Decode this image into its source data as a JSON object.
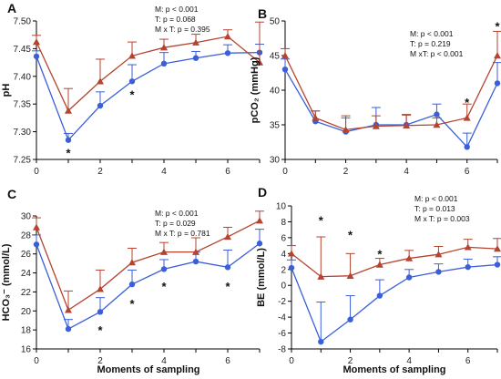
{
  "chart_data": [
    {
      "type": "line",
      "panel_label": "A",
      "ylabel": "pH",
      "xlabel": "",
      "xlim": [
        0,
        7
      ],
      "xticks": [
        0,
        2,
        4,
        6
      ],
      "ylim": [
        7.25,
        7.5
      ],
      "yticks": [
        7.25,
        7.3,
        7.35,
        7.4,
        7.45,
        7.5
      ],
      "ytick_labels": [
        "7.25",
        "7.30",
        "7.35",
        "7.40",
        "7.45",
        "7.50"
      ],
      "grid": false,
      "stats": [
        "M: p < 0.001",
        "T: p = 0.068",
        "M x T: p = 0.395"
      ],
      "series": [
        {
          "color": "#3a5fd9",
          "marker": "circle",
          "x": [
            0,
            1,
            2,
            3,
            4,
            5,
            6,
            7
          ],
          "values": [
            7.436,
            7.285,
            7.347,
            7.391,
            7.423,
            7.433,
            7.442,
            7.443
          ],
          "err": [
            0.01,
            0.012,
            0.025,
            0.03,
            0.02,
            0.012,
            0.015,
            0.015
          ]
        },
        {
          "color": "#b5432f",
          "marker": "triangle",
          "x": [
            0,
            1,
            2,
            3,
            4,
            5,
            6,
            7
          ],
          "values": [
            7.462,
            7.338,
            7.391,
            7.437,
            7.452,
            7.461,
            7.472,
            7.425
          ],
          "err": [
            0.012,
            0.04,
            0.04,
            0.025,
            0.015,
            0.015,
            0.012,
            0.073
          ]
        }
      ],
      "annotations": [
        {
          "x": 1,
          "y": 7.262,
          "text": "*"
        },
        {
          "x": 3,
          "y": 7.368,
          "text": "*"
        }
      ]
    },
    {
      "type": "line",
      "panel_label": "B",
      "ylabel": "pCO₂ (mmHg)",
      "xlabel": "",
      "xlim": [
        0,
        7
      ],
      "xticks": [
        0,
        2,
        4,
        6
      ],
      "ylim": [
        30,
        50
      ],
      "yticks": [
        30,
        35,
        40,
        45,
        50
      ],
      "ytick_labels": [
        "30",
        "35",
        "40",
        "45",
        "50"
      ],
      "grid": false,
      "stats": [
        "M: p < 0.001",
        "T: p = 0.219",
        "M xT: p < 0.001"
      ],
      "series": [
        {
          "color": "#3a5fd9",
          "marker": "circle",
          "x": [
            0,
            1,
            2,
            3,
            4,
            5,
            6,
            7
          ],
          "values": [
            43.0,
            35.5,
            34.0,
            35.0,
            35.0,
            36.5,
            31.8,
            41.0
          ],
          "err": [
            1.5,
            1.5,
            2.0,
            2.5,
            1.5,
            1.5,
            2.0,
            3.0
          ]
        },
        {
          "color": "#b5432f",
          "marker": "triangle",
          "x": [
            0,
            1,
            2,
            3,
            4,
            5,
            6,
            7
          ],
          "values": [
            45.0,
            36.0,
            34.3,
            34.8,
            34.9,
            35.0,
            36.0,
            45.0
          ],
          "err": [
            1.0,
            1.0,
            2.0,
            1.5,
            1.5,
            1.0,
            2.0,
            3.5
          ]
        }
      ],
      "annotations": [
        {
          "x": 6,
          "y": 38.3,
          "text": "*"
        },
        {
          "x": 7,
          "y": 49.3,
          "text": "*"
        }
      ]
    },
    {
      "type": "line",
      "panel_label": "C",
      "ylabel": "HCO₃⁻ (mmol/L)",
      "xlabel": "Moments  of sampling",
      "xlim": [
        0,
        7
      ],
      "xticks": [
        0,
        2,
        4,
        6
      ],
      "ylim": [
        16,
        30
      ],
      "yticks": [
        16,
        18,
        20,
        22,
        24,
        26,
        28,
        30
      ],
      "ytick_labels": [
        "16",
        "18",
        "20",
        "22",
        "24",
        "26",
        "28",
        "30"
      ],
      "grid": false,
      "stats": [
        "M: p < 0.001",
        "T: p = 0.029",
        "M x T: p = 0.781"
      ],
      "series": [
        {
          "color": "#3a5fd9",
          "marker": "circle",
          "x": [
            0,
            1,
            2,
            3,
            4,
            5,
            6,
            7
          ],
          "values": [
            27.0,
            18.1,
            19.9,
            22.8,
            24.4,
            25.2,
            24.6,
            27.1
          ],
          "err": [
            1.0,
            1.0,
            1.5,
            1.5,
            1.0,
            1.0,
            1.8,
            1.5
          ]
        },
        {
          "color": "#b5432f",
          "marker": "triangle",
          "x": [
            0,
            1,
            2,
            3,
            4,
            5,
            6,
            7
          ],
          "values": [
            28.8,
            20.1,
            22.3,
            25.1,
            26.2,
            26.2,
            27.8,
            29.5
          ],
          "err": [
            1.0,
            2.0,
            2.0,
            1.5,
            1.0,
            1.5,
            1.0,
            1.0
          ]
        }
      ],
      "annotations": [
        {
          "x": 2,
          "y": 18.0,
          "text": "*"
        },
        {
          "x": 3,
          "y": 20.8,
          "text": "*"
        },
        {
          "x": 4,
          "y": 22.6,
          "text": "*"
        },
        {
          "x": 6,
          "y": 22.6,
          "text": "*"
        }
      ]
    },
    {
      "type": "line",
      "panel_label": "D",
      "ylabel": "BE (mmol/L)",
      "xlabel": "Moments  of sampling",
      "xlim": [
        0,
        7
      ],
      "xticks": [
        0,
        2,
        4,
        6
      ],
      "ylim": [
        -8,
        10
      ],
      "yticks": [
        -8,
        -6,
        -4,
        -2,
        0,
        2,
        4,
        6,
        8,
        10
      ],
      "ytick_labels": [
        "-8",
        "-6",
        "-4",
        "-2",
        "0",
        "2",
        "4",
        "6",
        "8",
        "10"
      ],
      "grid": false,
      "stats": [
        "M: p < 0.001",
        "T: p = 0.013",
        "M x T: p = 0.003"
      ],
      "series": [
        {
          "color": "#3a5fd9",
          "marker": "circle",
          "x": [
            0,
            1,
            2,
            3,
            4,
            5,
            6,
            7
          ],
          "values": [
            2.2,
            -7.1,
            -4.3,
            -1.3,
            1.0,
            1.7,
            2.3,
            2.6
          ],
          "err": [
            1.0,
            5.0,
            3.0,
            2.0,
            1.0,
            1.0,
            1.0,
            1.0
          ]
        },
        {
          "color": "#b5432f",
          "marker": "triangle",
          "x": [
            0,
            1,
            2,
            3,
            4,
            5,
            6,
            7
          ],
          "values": [
            4.0,
            1.1,
            1.2,
            2.6,
            3.4,
            3.9,
            4.8,
            4.6
          ],
          "err": [
            1.0,
            5.0,
            2.8,
            0.8,
            1.0,
            1.0,
            1.0,
            1.3
          ]
        }
      ],
      "annotations": [
        {
          "x": 1,
          "y": 8.2,
          "text": "*"
        },
        {
          "x": 2,
          "y": 6.4,
          "text": "*"
        },
        {
          "x": 3,
          "y": 4.0,
          "text": "*"
        }
      ]
    }
  ]
}
